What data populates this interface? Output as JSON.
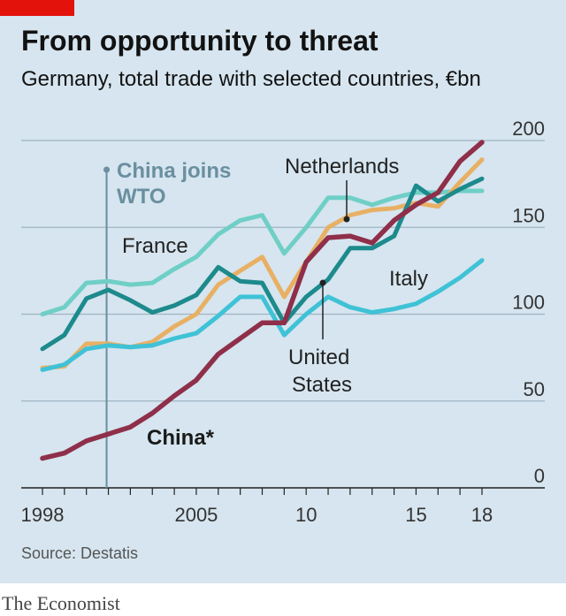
{
  "header": {
    "title": "From opportunity to threat",
    "subtitle": "Germany, total trade with selected countries, €bn"
  },
  "footer": {
    "source": "Source: Destatis",
    "brand": "The Economist"
  },
  "colors": {
    "background": "#d6e5ef",
    "accent": "#e3120b",
    "france": "#6fcfc6",
    "netherlands": "#e8b064",
    "united_states": "#1d8a8c",
    "italy": "#3fc2d6",
    "china": "#8f2f4a",
    "event_line": "#6a8fa0"
  },
  "chart_data": {
    "type": "line",
    "x": [
      1998,
      1999,
      2000,
      2001,
      2002,
      2003,
      2004,
      2005,
      2006,
      2007,
      2008,
      2009,
      2010,
      2011,
      2012,
      2013,
      2014,
      2015,
      2016,
      2017,
      2018
    ],
    "x_tick_labels": [
      {
        "value": 1998,
        "label": "1998"
      },
      {
        "value": 2005,
        "label": "2005"
      },
      {
        "value": 2010,
        "label": "10"
      },
      {
        "value": 2015,
        "label": "15"
      },
      {
        "value": 2018,
        "label": "18"
      }
    ],
    "y_tick_labels": [
      "0",
      "50",
      "100",
      "150",
      "200"
    ],
    "ylim": [
      0,
      200
    ],
    "y_axis_side": "right",
    "grid": true,
    "series": [
      {
        "name": "France",
        "key": "france",
        "values": [
          100,
          104,
          118,
          119,
          117,
          118,
          126,
          133,
          146,
          154,
          157,
          135,
          150,
          167,
          167,
          163,
          167,
          170,
          170,
          171,
          171
        ]
      },
      {
        "name": "Netherlands",
        "key": "netherlands",
        "values": [
          69,
          70,
          83,
          83,
          81,
          84,
          93,
          100,
          117,
          125,
          133,
          110,
          130,
          150,
          157,
          160,
          161,
          164,
          162,
          176,
          189
        ]
      },
      {
        "name": "United States",
        "key": "united_states",
        "values": [
          80,
          88,
          109,
          114,
          108,
          101,
          105,
          111,
          127,
          119,
          118,
          95,
          110,
          120,
          138,
          138,
          145,
          174,
          165,
          172,
          178
        ]
      },
      {
        "name": "Italy",
        "key": "italy",
        "values": [
          68,
          71,
          80,
          82,
          81,
          82,
          86,
          89,
          99,
          110,
          110,
          88,
          100,
          110,
          104,
          101,
          103,
          106,
          113,
          121,
          131
        ]
      },
      {
        "name": "China*",
        "key": "china",
        "values": [
          17,
          20,
          27,
          31,
          35,
          43,
          53,
          62,
          77,
          86,
          95,
          95,
          130,
          144,
          145,
          141,
          154,
          163,
          170,
          188,
          199
        ]
      }
    ],
    "annotations": [
      {
        "text": "China joins WTO",
        "x": 2001
      }
    ]
  },
  "labels": {
    "france": "France",
    "netherlands": "Netherlands",
    "italy": "Italy",
    "us_line1": "United",
    "us_line2": "States",
    "china": "China*",
    "wto_line1": "China joins",
    "wto_line2": "WTO"
  }
}
